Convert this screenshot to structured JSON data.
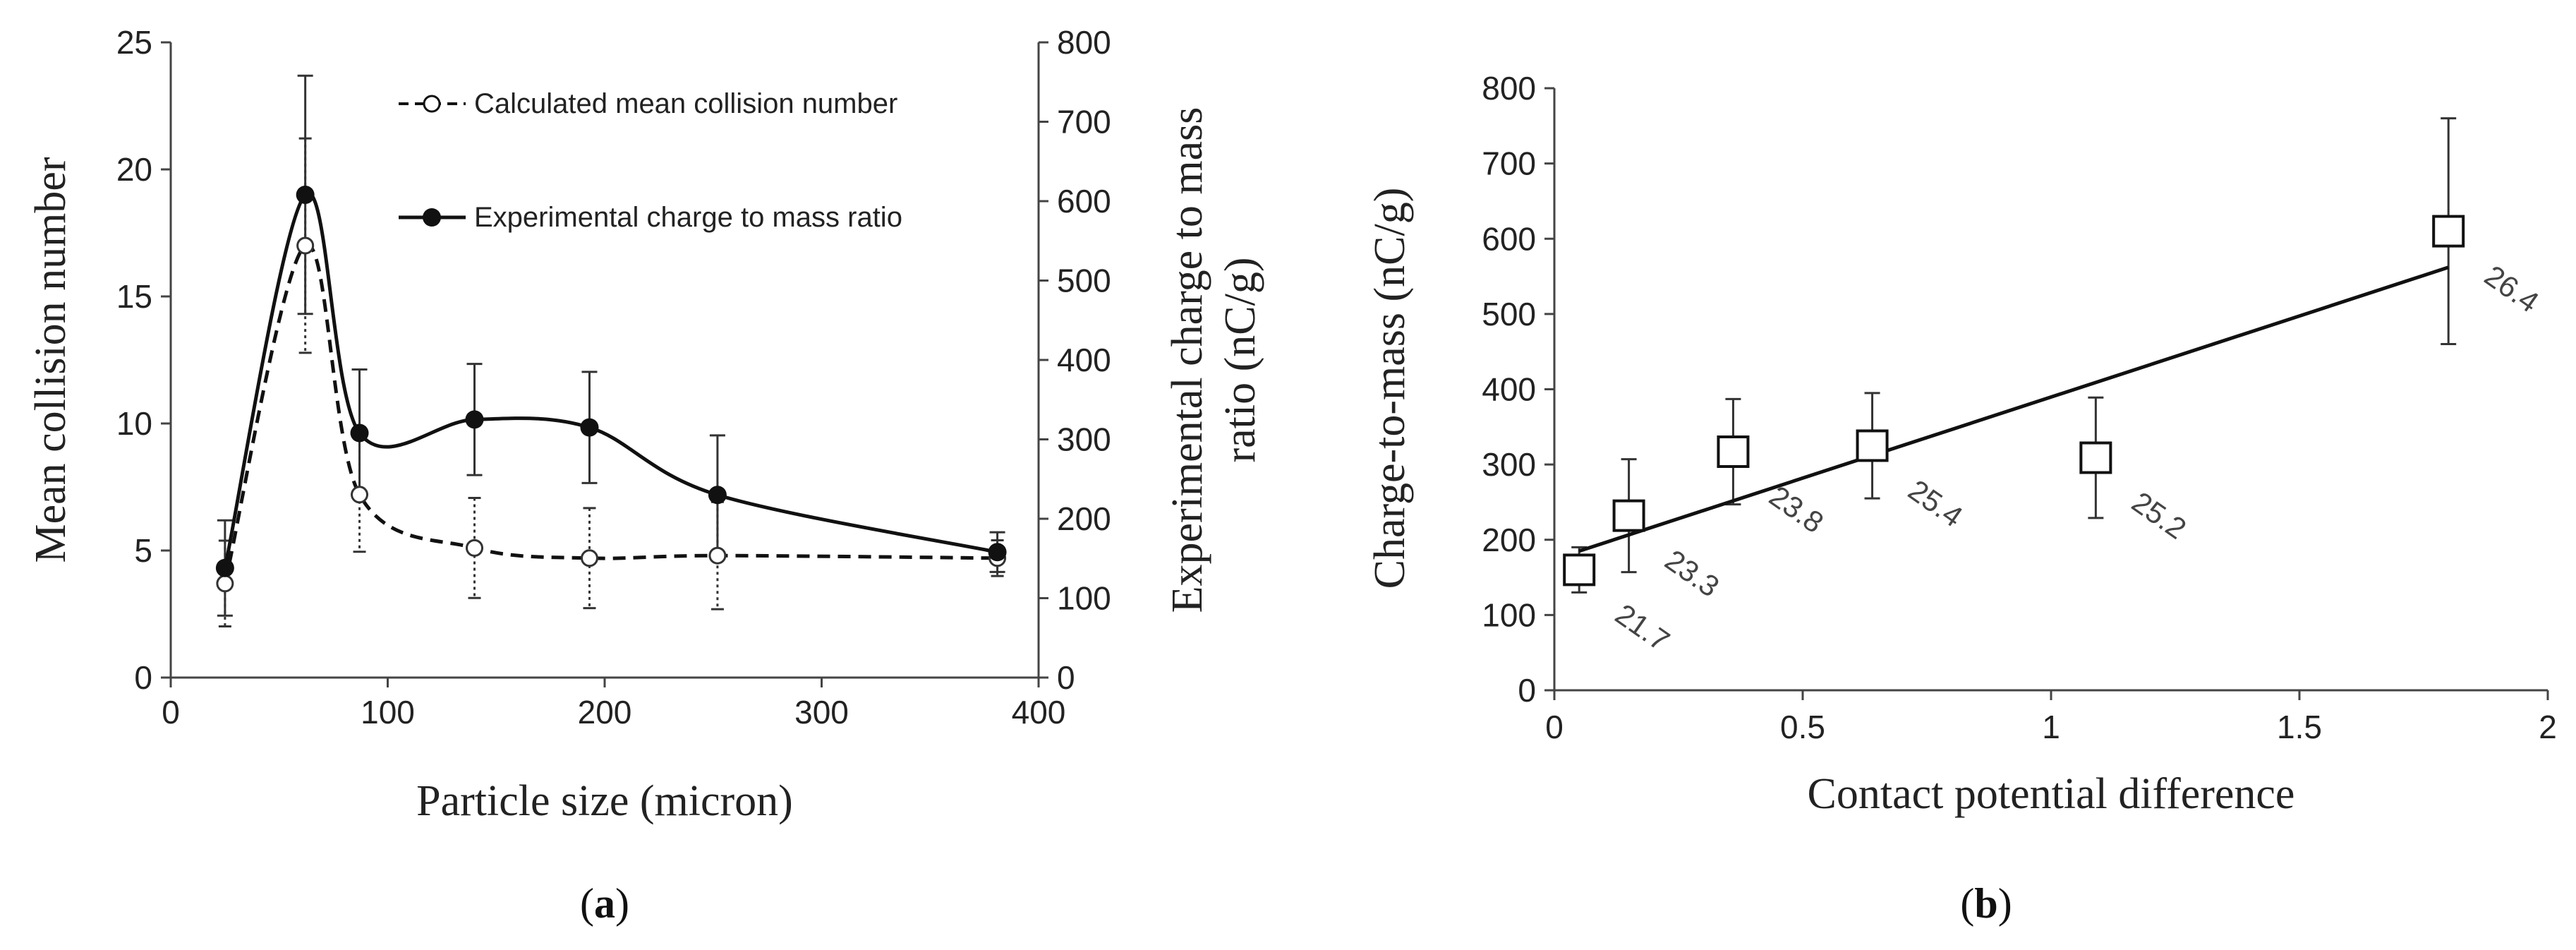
{
  "chart_data": [
    {
      "type": "line",
      "panel": "(a)",
      "panel_letter": "a",
      "xlabel": "Particle size (micron)",
      "ylabel_left": "Mean collision number",
      "ylabel_right_line1": "Experimental charge to mass",
      "ylabel_right_line2": "ratio (nC/g)",
      "xlim": [
        0,
        400
      ],
      "ylim_left": [
        0,
        25
      ],
      "ylim_right": [
        0,
        800
      ],
      "xticks": [
        "0",
        "100",
        "200",
        "300",
        "400"
      ],
      "yticks_left": [
        "0",
        "5",
        "10",
        "15",
        "20",
        "25"
      ],
      "yticks_right": [
        "0",
        "100",
        "200",
        "300",
        "400",
        "500",
        "600",
        "700",
        "800"
      ],
      "grid": false,
      "legend_position": "top-right",
      "series": [
        {
          "name": "Calculated mean collision number",
          "axis": "left",
          "style": "dashed",
          "marker": "open-circle",
          "x": [
            25,
            62,
            87,
            140,
            193,
            252,
            381
          ],
          "y": [
            3.7,
            17.0,
            7.2,
            5.1,
            4.7,
            4.8,
            4.7
          ]
        },
        {
          "name": "Experimental charge to mass ratio",
          "axis": "right",
          "style": "solid",
          "marker": "filled-circle",
          "x": [
            25,
            62,
            87,
            140,
            193,
            252,
            381
          ],
          "y": [
            138,
            608,
            308,
            325,
            315,
            230,
            158
          ],
          "error": [
            60,
            150,
            80,
            70,
            70,
            75,
            25
          ]
        }
      ]
    },
    {
      "type": "scatter",
      "panel": "(b)",
      "panel_letter": "b",
      "xlabel": "Contact potential difference",
      "ylabel": "Charge-to-mass (nC/g)",
      "xlim": [
        0,
        2
      ],
      "ylim": [
        0,
        800
      ],
      "xticks": [
        "0",
        "0.5",
        "1",
        "1.5",
        "2"
      ],
      "yticks": [
        "0",
        "100",
        "200",
        "300",
        "400",
        "500",
        "600",
        "700",
        "800"
      ],
      "grid": false,
      "points": {
        "x": [
          0.05,
          0.15,
          0.36,
          0.64,
          1.09,
          1.8
        ],
        "y": [
          160,
          232,
          317,
          325,
          309,
          610
        ],
        "error": [
          30,
          75,
          70,
          70,
          80,
          150
        ],
        "labels": [
          "21.7",
          "23.3",
          "23.8",
          "25.4",
          "25.2",
          "26.4"
        ]
      },
      "trendline": {
        "x": [
          0.05,
          1.8
        ],
        "y": [
          185,
          562
        ]
      }
    }
  ]
}
